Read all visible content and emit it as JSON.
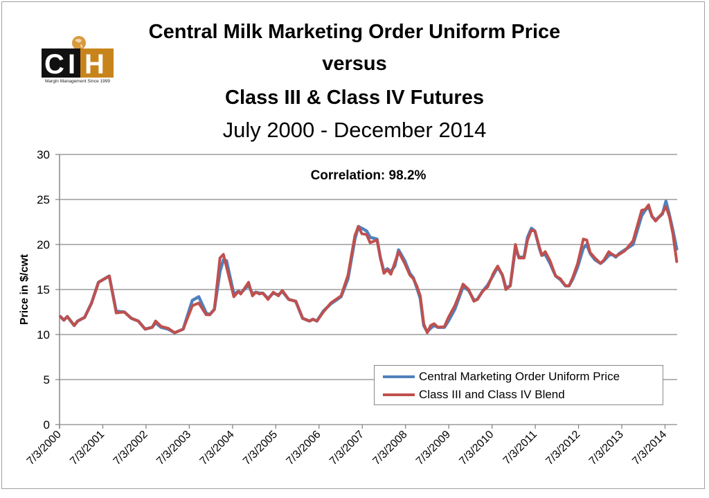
{
  "titles": {
    "line1": "Central Milk Marketing Order Uniform Price",
    "line2": "versus",
    "line3": "Class III  & Class IV Futures",
    "line4": "July 2000 - December 2014"
  },
  "logo": {
    "text_c": "C",
    "text_i": "I",
    "text_h": "H",
    "tagline": "Margin Management Since 1999",
    "color_orange": "#c8841c"
  },
  "chart_data": {
    "type": "line",
    "title": "Central Milk Marketing Order Uniform Price versus Class III & Class IV Futures, July 2000 - December 2014",
    "annotation": "Correlation: 98.2%",
    "xlabel": "",
    "ylabel": "Price in $/cwt",
    "ylim": [
      0,
      30
    ],
    "yticks": [
      0,
      5,
      10,
      15,
      20,
      25,
      30
    ],
    "xlim": [
      2000.5,
      2014.78
    ],
    "xtick_values": [
      2000.5,
      2001.5,
      2002.5,
      2003.5,
      2004.5,
      2005.5,
      2006.5,
      2007.5,
      2008.5,
      2009.5,
      2010.5,
      2011.5,
      2012.5,
      2013.5,
      2014.5
    ],
    "xtick_labels": [
      "7/3/2000",
      "7/3/2001",
      "7/3/2002",
      "7/3/2003",
      "7/3/2004",
      "7/3/2005",
      "7/3/2006",
      "7/3/2007",
      "7/3/2008",
      "7/3/2009",
      "7/3/2010",
      "7/3/2011",
      "7/3/2012",
      "7/3/2013",
      "7/3/2014"
    ],
    "grid": true,
    "legend_position": "bottom-right",
    "series": [
      {
        "name": "Central Marketing Order Uniform Price",
        "color": "#4f81bd",
        "points": [
          [
            2000.52,
            12.0
          ],
          [
            2000.6,
            11.6
          ],
          [
            2000.68,
            12.0
          ],
          [
            2000.84,
            11.0
          ],
          [
            2000.92,
            11.5
          ],
          [
            2001.08,
            11.9
          ],
          [
            2001.24,
            13.5
          ],
          [
            2001.4,
            15.8
          ],
          [
            2001.65,
            16.5
          ],
          [
            2001.81,
            12.6
          ],
          [
            2002.0,
            12.5
          ],
          [
            2002.16,
            11.8
          ],
          [
            2002.32,
            11.5
          ],
          [
            2002.48,
            10.6
          ],
          [
            2002.64,
            10.8
          ],
          [
            2002.72,
            11.3
          ],
          [
            2002.85,
            10.8
          ],
          [
            2003.01,
            10.6
          ],
          [
            2003.16,
            10.2
          ],
          [
            2003.36,
            10.6
          ],
          [
            2003.57,
            13.8
          ],
          [
            2003.72,
            14.2
          ],
          [
            2003.89,
            12.4
          ],
          [
            2003.97,
            12.2
          ],
          [
            2004.08,
            12.8
          ],
          [
            2004.21,
            17.0
          ],
          [
            2004.29,
            18.3
          ],
          [
            2004.36,
            18.2
          ],
          [
            2004.53,
            14.5
          ],
          [
            2004.64,
            14.8
          ],
          [
            2004.69,
            14.6
          ],
          [
            2004.87,
            15.5
          ],
          [
            2004.96,
            14.5
          ],
          [
            2005.04,
            14.7
          ],
          [
            2005.12,
            14.6
          ],
          [
            2005.2,
            14.6
          ],
          [
            2005.32,
            14.0
          ],
          [
            2005.44,
            14.6
          ],
          [
            2005.56,
            14.4
          ],
          [
            2005.65,
            14.8
          ],
          [
            2005.8,
            13.9
          ],
          [
            2005.96,
            13.7
          ],
          [
            2006.12,
            11.8
          ],
          [
            2006.28,
            11.5
          ],
          [
            2006.36,
            11.7
          ],
          [
            2006.45,
            11.5
          ],
          [
            2006.6,
            12.6
          ],
          [
            2006.77,
            13.4
          ],
          [
            2007.01,
            14.2
          ],
          [
            2007.17,
            16.2
          ],
          [
            2007.33,
            20.6
          ],
          [
            2007.41,
            22.0
          ],
          [
            2007.49,
            21.8
          ],
          [
            2007.6,
            21.5
          ],
          [
            2007.68,
            20.8
          ],
          [
            2007.84,
            20.6
          ],
          [
            2007.92,
            18.5
          ],
          [
            2008.0,
            17.0
          ],
          [
            2008.08,
            17.3
          ],
          [
            2008.16,
            17.0
          ],
          [
            2008.25,
            17.6
          ],
          [
            2008.34,
            19.4
          ],
          [
            2008.48,
            18.2
          ],
          [
            2008.6,
            16.8
          ],
          [
            2008.68,
            16.3
          ],
          [
            2008.76,
            15.2
          ],
          [
            2008.84,
            14.0
          ],
          [
            2008.92,
            11.0
          ],
          [
            2009.0,
            10.3
          ],
          [
            2009.08,
            10.7
          ],
          [
            2009.16,
            11.0
          ],
          [
            2009.25,
            10.8
          ],
          [
            2009.4,
            10.8
          ],
          [
            2009.49,
            11.5
          ],
          [
            2009.64,
            12.8
          ],
          [
            2009.73,
            14.0
          ],
          [
            2009.83,
            15.3
          ],
          [
            2009.96,
            14.9
          ],
          [
            2010.08,
            13.8
          ],
          [
            2010.16,
            13.9
          ],
          [
            2010.28,
            14.8
          ],
          [
            2010.4,
            15.5
          ],
          [
            2010.53,
            16.6
          ],
          [
            2010.63,
            17.5
          ],
          [
            2010.74,
            16.6
          ],
          [
            2010.82,
            15.2
          ],
          [
            2010.92,
            15.4
          ],
          [
            2011.04,
            19.6
          ],
          [
            2011.12,
            18.6
          ],
          [
            2011.24,
            18.6
          ],
          [
            2011.32,
            20.8
          ],
          [
            2011.41,
            21.8
          ],
          [
            2011.49,
            21.5
          ],
          [
            2011.6,
            19.5
          ],
          [
            2011.65,
            18.8
          ],
          [
            2011.73,
            18.9
          ],
          [
            2011.84,
            17.9
          ],
          [
            2011.97,
            16.5
          ],
          [
            2012.08,
            16.1
          ],
          [
            2012.2,
            15.4
          ],
          [
            2012.28,
            15.4
          ],
          [
            2012.37,
            16.2
          ],
          [
            2012.48,
            17.5
          ],
          [
            2012.61,
            19.6
          ],
          [
            2012.69,
            20.0
          ],
          [
            2012.77,
            19.0
          ],
          [
            2012.88,
            18.3
          ],
          [
            2013.01,
            17.9
          ],
          [
            2013.09,
            18.2
          ],
          [
            2013.2,
            18.8
          ],
          [
            2013.28,
            18.9
          ],
          [
            2013.36,
            18.6
          ],
          [
            2013.44,
            19.0
          ],
          [
            2013.57,
            19.4
          ],
          [
            2013.76,
            20.0
          ],
          [
            2013.96,
            23.2
          ],
          [
            2014.04,
            23.8
          ],
          [
            2014.12,
            24.2
          ],
          [
            2014.2,
            23.1
          ],
          [
            2014.28,
            22.7
          ],
          [
            2014.44,
            23.4
          ],
          [
            2014.52,
            24.8
          ],
          [
            2014.6,
            23.3
          ],
          [
            2014.68,
            21.6
          ],
          [
            2014.77,
            19.5
          ]
        ]
      },
      {
        "name": "Class III and Class IV Blend",
        "color": "#c0504d",
        "points": [
          [
            2000.52,
            12.0
          ],
          [
            2000.6,
            11.6
          ],
          [
            2000.68,
            12.0
          ],
          [
            2000.84,
            11.0
          ],
          [
            2000.92,
            11.5
          ],
          [
            2001.08,
            11.9
          ],
          [
            2001.24,
            13.5
          ],
          [
            2001.4,
            15.8
          ],
          [
            2001.65,
            16.5
          ],
          [
            2001.81,
            12.4
          ],
          [
            2002.0,
            12.5
          ],
          [
            2002.16,
            11.8
          ],
          [
            2002.32,
            11.5
          ],
          [
            2002.48,
            10.6
          ],
          [
            2002.64,
            10.8
          ],
          [
            2002.72,
            11.5
          ],
          [
            2002.85,
            10.9
          ],
          [
            2003.01,
            10.7
          ],
          [
            2003.16,
            10.2
          ],
          [
            2003.36,
            10.6
          ],
          [
            2003.57,
            13.2
          ],
          [
            2003.72,
            13.5
          ],
          [
            2003.89,
            12.2
          ],
          [
            2003.97,
            12.2
          ],
          [
            2004.08,
            12.8
          ],
          [
            2004.21,
            18.5
          ],
          [
            2004.29,
            18.9
          ],
          [
            2004.53,
            14.2
          ],
          [
            2004.64,
            14.8
          ],
          [
            2004.69,
            14.5
          ],
          [
            2004.87,
            15.8
          ],
          [
            2004.96,
            14.3
          ],
          [
            2005.04,
            14.7
          ],
          [
            2005.12,
            14.5
          ],
          [
            2005.2,
            14.6
          ],
          [
            2005.32,
            13.9
          ],
          [
            2005.44,
            14.7
          ],
          [
            2005.56,
            14.3
          ],
          [
            2005.65,
            14.9
          ],
          [
            2005.8,
            13.9
          ],
          [
            2005.96,
            13.7
          ],
          [
            2006.12,
            11.8
          ],
          [
            2006.28,
            11.5
          ],
          [
            2006.36,
            11.7
          ],
          [
            2006.45,
            11.5
          ],
          [
            2006.6,
            12.5
          ],
          [
            2006.77,
            13.5
          ],
          [
            2007.01,
            14.3
          ],
          [
            2007.17,
            16.6
          ],
          [
            2007.33,
            21.0
          ],
          [
            2007.41,
            22.0
          ],
          [
            2007.49,
            21.2
          ],
          [
            2007.6,
            21.1
          ],
          [
            2007.68,
            20.2
          ],
          [
            2007.84,
            20.5
          ],
          [
            2007.92,
            18.5
          ],
          [
            2008.0,
            16.8
          ],
          [
            2008.08,
            17.2
          ],
          [
            2008.16,
            16.7
          ],
          [
            2008.34,
            19.2
          ],
          [
            2008.48,
            17.9
          ],
          [
            2008.6,
            16.6
          ],
          [
            2008.68,
            16.2
          ],
          [
            2008.76,
            15.4
          ],
          [
            2008.84,
            14.3
          ],
          [
            2008.92,
            11.2
          ],
          [
            2009.0,
            10.2
          ],
          [
            2009.08,
            11.0
          ],
          [
            2009.16,
            11.2
          ],
          [
            2009.25,
            10.8
          ],
          [
            2009.4,
            10.9
          ],
          [
            2009.49,
            11.9
          ],
          [
            2009.64,
            13.2
          ],
          [
            2009.73,
            14.3
          ],
          [
            2009.83,
            15.6
          ],
          [
            2009.96,
            15.0
          ],
          [
            2010.08,
            13.7
          ],
          [
            2010.16,
            13.9
          ],
          [
            2010.28,
            14.8
          ],
          [
            2010.4,
            15.3
          ],
          [
            2010.53,
            16.8
          ],
          [
            2010.63,
            17.6
          ],
          [
            2010.74,
            16.6
          ],
          [
            2010.82,
            15.0
          ],
          [
            2010.92,
            15.4
          ],
          [
            2011.04,
            20.0
          ],
          [
            2011.12,
            18.5
          ],
          [
            2011.24,
            18.5
          ],
          [
            2011.32,
            20.5
          ],
          [
            2011.41,
            21.6
          ],
          [
            2011.49,
            21.5
          ],
          [
            2011.6,
            19.6
          ],
          [
            2011.65,
            18.8
          ],
          [
            2011.73,
            19.2
          ],
          [
            2011.84,
            18.2
          ],
          [
            2011.97,
            16.5
          ],
          [
            2012.08,
            16.2
          ],
          [
            2012.2,
            15.4
          ],
          [
            2012.28,
            15.4
          ],
          [
            2012.37,
            16.4
          ],
          [
            2012.48,
            17.9
          ],
          [
            2012.61,
            20.6
          ],
          [
            2012.69,
            20.5
          ],
          [
            2012.77,
            19.1
          ],
          [
            2012.88,
            18.5
          ],
          [
            2013.01,
            17.9
          ],
          [
            2013.09,
            18.3
          ],
          [
            2013.2,
            19.2
          ],
          [
            2013.28,
            18.9
          ],
          [
            2013.36,
            18.7
          ],
          [
            2013.44,
            18.9
          ],
          [
            2013.57,
            19.3
          ],
          [
            2013.76,
            20.4
          ],
          [
            2013.96,
            23.8
          ],
          [
            2014.04,
            23.9
          ],
          [
            2014.12,
            24.4
          ],
          [
            2014.2,
            23.1
          ],
          [
            2014.28,
            22.6
          ],
          [
            2014.44,
            23.5
          ],
          [
            2014.52,
            24.2
          ],
          [
            2014.6,
            23.1
          ],
          [
            2014.68,
            21.2
          ],
          [
            2014.77,
            18.1
          ]
        ]
      }
    ]
  }
}
